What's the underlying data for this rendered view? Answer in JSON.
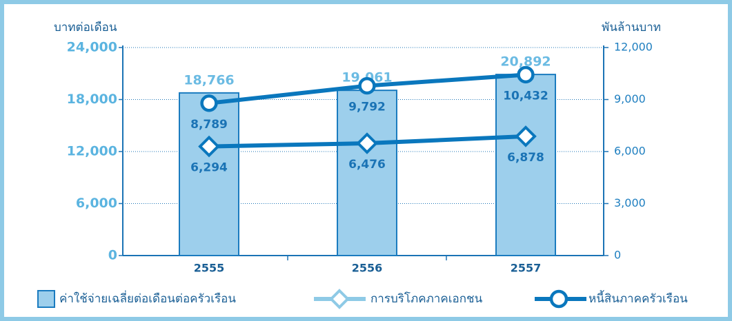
{
  "chart_data": {
    "type": "bar",
    "y_label": "บาทต่อเดือน",
    "y2_label": "พันล้านบาท",
    "categories": [
      "2555",
      "2556",
      "2557"
    ],
    "ylim": [
      0,
      24000
    ],
    "yticks": [
      0,
      {
        "value": 6000,
        "label": "6,000"
      },
      {
        "value": 12000,
        "label": "12,000"
      },
      {
        "value": 18000,
        "label": "18,000"
      },
      {
        "value": 24000,
        "label": "24,000"
      }
    ],
    "y2lim": [
      0,
      12000
    ],
    "y2ticks": [
      0,
      {
        "value": 3000,
        "label": "3,000"
      },
      {
        "value": 6000,
        "label": "6,000"
      },
      {
        "value": 9000,
        "label": "9,000"
      },
      {
        "value": 12000,
        "label": "12,000"
      }
    ],
    "grid": true,
    "series": [
      {
        "name": "ค่าใช้จ่ายเฉลี่ยต่อเดือนต่อครัวเรือน",
        "type": "bar",
        "axis": "y",
        "color": "#9dcfec",
        "values": [
          18766,
          19061,
          20892
        ],
        "value_labels": [
          "18,766",
          "19,061",
          "20,892"
        ]
      },
      {
        "name": "การบริโภคภาคเอกชน",
        "type": "line",
        "axis": "y2",
        "color": "#0a77bd",
        "marker": "diamond",
        "values": [
          6294,
          6476,
          6878
        ],
        "value_labels": [
          "6,294",
          "6,476",
          "6,878"
        ]
      },
      {
        "name": "หนี้สินภาคครัวเรือน",
        "type": "line",
        "axis": "y2",
        "color": "#0a77bd",
        "marker": "circle",
        "values": [
          8789,
          9792,
          10432
        ],
        "value_labels": [
          "8,789",
          "9,792",
          "10,432"
        ]
      }
    ]
  }
}
